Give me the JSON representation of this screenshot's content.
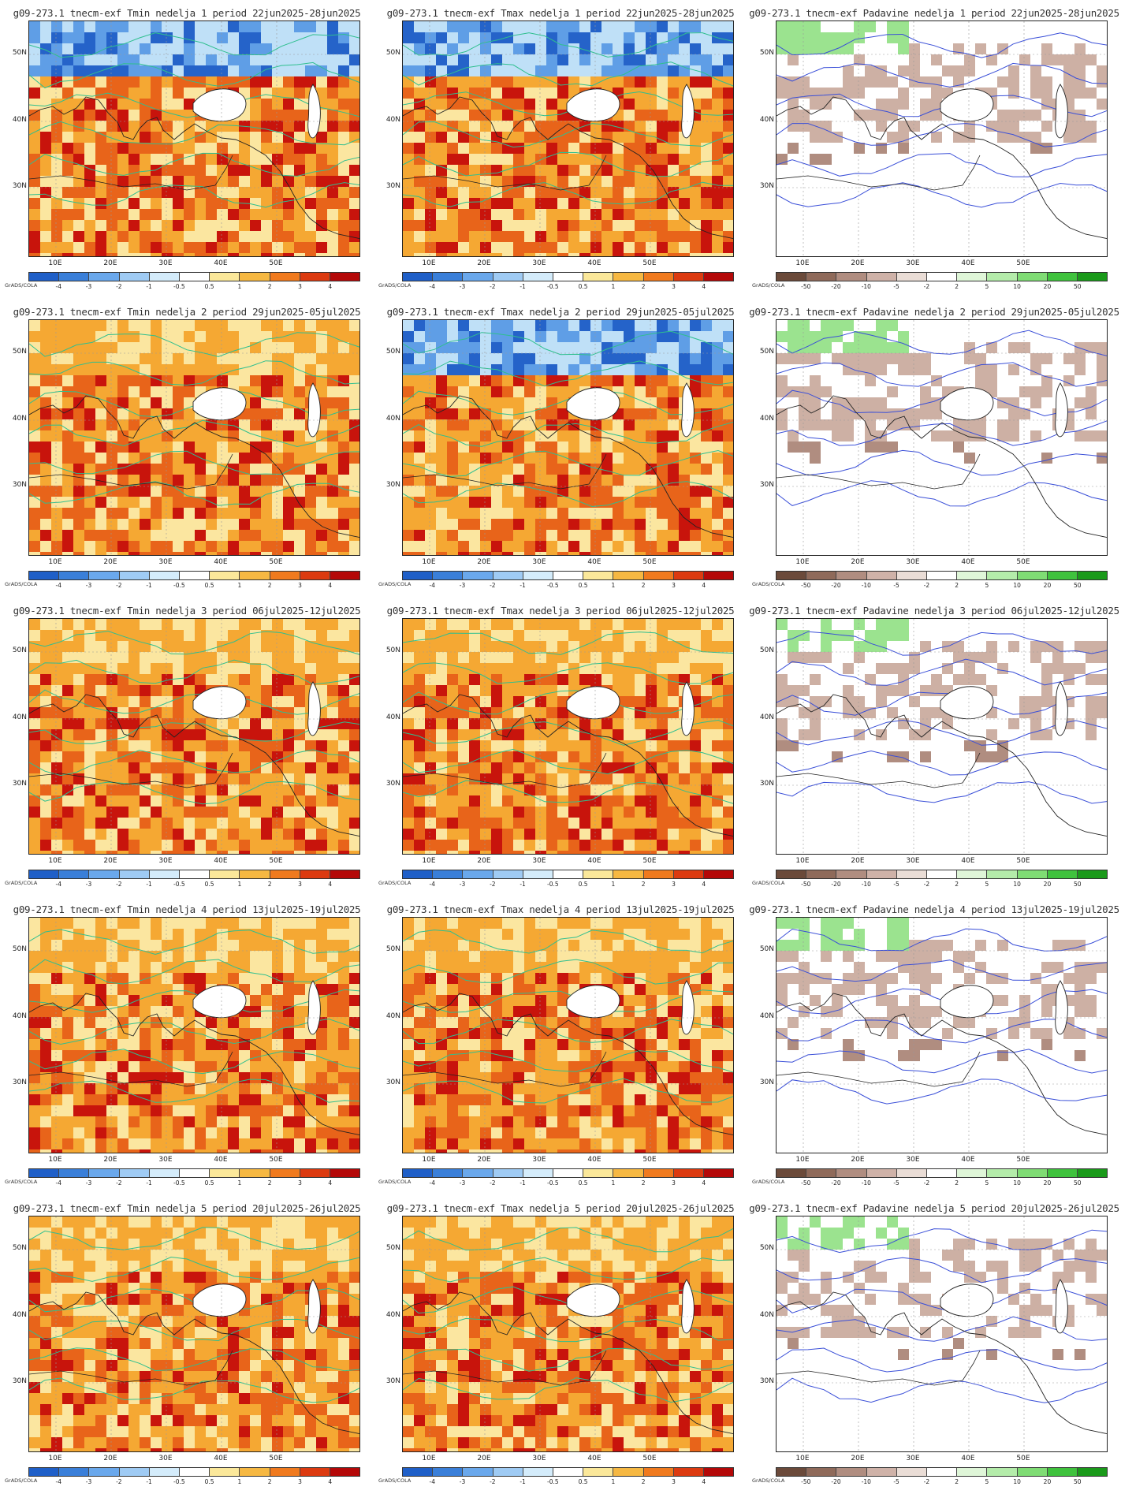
{
  "panels": [
    {
      "title": "g09-273.1 tnecm-exf Tmin nedelja 1 period 22jun2025-28jun2025",
      "variable": "Tmin"
    },
    {
      "title": "g09-273.1 tnecm-exf Tmax nedelja 1 period 22jun2025-28jun2025",
      "variable": "Tmax"
    },
    {
      "title": "g09-273.1 tnecm-exf Padavine nedelja 1 period 22jun2025-28jun2025",
      "variable": "Padavine"
    },
    {
      "title": "g09-273.1 tnecm-exf Tmin nedelja 2 period 29jun2025-05jul2025",
      "variable": "Tmin"
    },
    {
      "title": "g09-273.1 tnecm-exf Tmax nedelja 2 period 29jun2025-05jul2025",
      "variable": "Tmax"
    },
    {
      "title": "g09-273.1 tnecm-exf Padavine nedelja 2 period 29jun2025-05jul2025",
      "variable": "Padavine"
    },
    {
      "title": "g09-273.1 tnecm-exf Tmin nedelja 3 period 06jul2025-12jul2025",
      "variable": "Tmin"
    },
    {
      "title": "g09-273.1 tnecm-exf Tmax nedelja 3 period 06jul2025-12jul2025",
      "variable": "Tmax"
    },
    {
      "title": "g09-273.1 tnecm-exf Padavine nedelja 3 period 06jul2025-12jul2025",
      "variable": "Padavine"
    },
    {
      "title": "g09-273.1 tnecm-exf Tmin nedelja 4 period 13jul2025-19jul2025",
      "variable": "Tmin"
    },
    {
      "title": "g09-273.1 tnecm-exf Tmax nedelja 4 period 13jul2025-19jul2025",
      "variable": "Tmax"
    },
    {
      "title": "g09-273.1 tnecm-exf Padavine nedelja 4 period 13jul2025-19jul2025",
      "variable": "Padavine"
    },
    {
      "title": "g09-273.1 tnecm-exf Tmin nedelja 5 period 20jul2025-26jul2025",
      "variable": "Tmin"
    },
    {
      "title": "g09-273.1 tnecm-exf Tmax nedelja 5 period 20jul2025-26jul2025",
      "variable": "Tmax"
    },
    {
      "title": "g09-273.1 tnecm-exf Padavine nedelja 5 period 20jul2025-26jul2025",
      "variable": "Padavine"
    }
  ],
  "lat_labels": [
    "50N",
    "40N",
    "30N"
  ],
  "lon_labels": [
    "10E",
    "20E",
    "30E",
    "40E",
    "50E"
  ],
  "credit": "GrADS/COLA",
  "temp_legend": {
    "ticks": [
      "-4",
      "-3",
      "-2",
      "-1",
      "-0.5",
      "0.5",
      "1",
      "2",
      "3",
      "4"
    ],
    "colors": [
      "#1f5fc8",
      "#3a7fd9",
      "#6aa8ec",
      "#9fcbf4",
      "#d4ecfb",
      "#ffffff",
      "#fbe89a",
      "#f6b842",
      "#f07a1e",
      "#dc3a10",
      "#b40808"
    ]
  },
  "precip_legend": {
    "ticks": [
      "-50",
      "-20",
      "-10",
      "-5",
      "-2",
      "2",
      "5",
      "10",
      "20",
      "50"
    ],
    "colors": [
      "#6b4a3a",
      "#8f6a5a",
      "#b08d80",
      "#cfb2a8",
      "#eaddd6",
      "#ffffff",
      "#dff6d8",
      "#b4ecaa",
      "#7fdc74",
      "#3fc23d",
      "#1a9a1a"
    ]
  },
  "variable_colors": {
    "warm_strong": "#c8140c",
    "warm": "#e8641a",
    "warm_light": "#f5a833",
    "mild": "#fbe6a0",
    "cool": "#bfe0f7",
    "cold": "#5f9ee6",
    "very_cold": "#2563c9",
    "contour_temp": "#2fbf8f",
    "contour_precip": "#3a4fd8",
    "dry": "#cdb0a4",
    "wet": "#9be38f"
  }
}
